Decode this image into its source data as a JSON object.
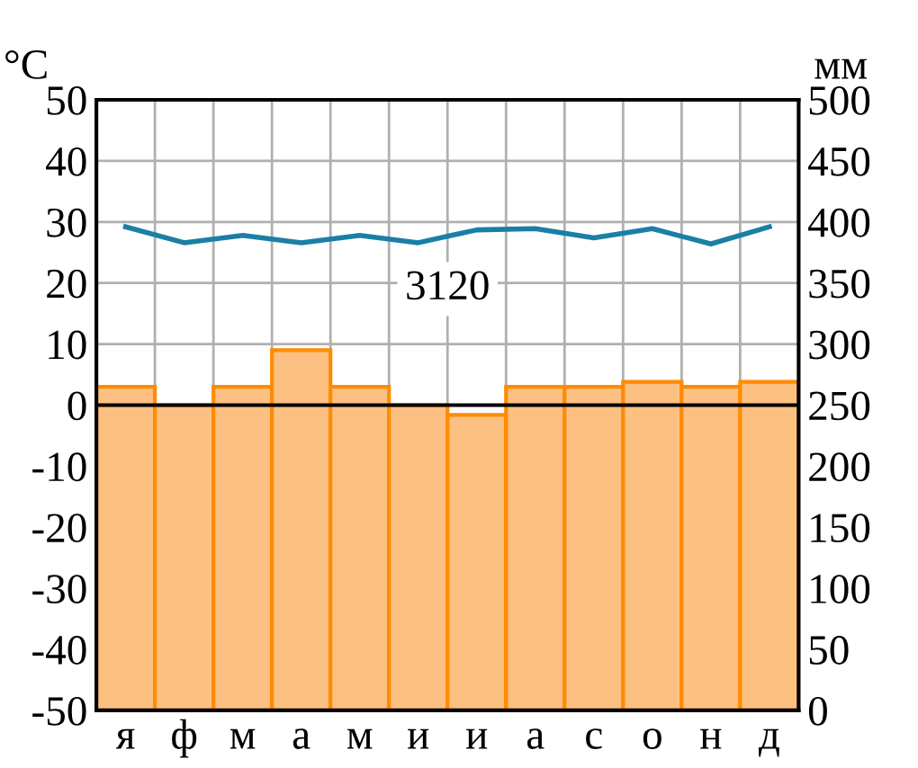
{
  "chart_data": {
    "type": "bar",
    "ylabel": "°C",
    "y2label": "мм",
    "categories": [
      "я",
      "ф",
      "м",
      "а",
      "м",
      "и",
      "и",
      "а",
      "с",
      "о",
      "н",
      "д"
    ],
    "series": [
      {
        "axis": "y2",
        "color": "#fdc083",
        "values": [
          265,
          250,
          265,
          295,
          265,
          250,
          242,
          265,
          265,
          269,
          265,
          269
        ]
      },
      {
        "type": "line",
        "axis": "y",
        "color": "#1b7fa5",
        "values": [
          29.2,
          26.6,
          27.8,
          26.6,
          27.8,
          26.6,
          28.7,
          28.9,
          27.4,
          28.9,
          26.4,
          29.2
        ]
      }
    ],
    "ylim": [
      -50,
      50
    ],
    "yticks": [
      -50,
      -40,
      -30,
      -20,
      -10,
      0,
      10,
      20,
      30,
      40,
      50
    ],
    "y2lim": [
      0,
      500
    ],
    "y2ticks": [
      0,
      50,
      100,
      150,
      200,
      250,
      300,
      350,
      400,
      450,
      500
    ],
    "ref_lines": [
      {
        "axis": "y",
        "value": 0,
        "color": "#000000"
      }
    ],
    "annotations": [
      "3120"
    ],
    "grid": true,
    "legend": false
  }
}
